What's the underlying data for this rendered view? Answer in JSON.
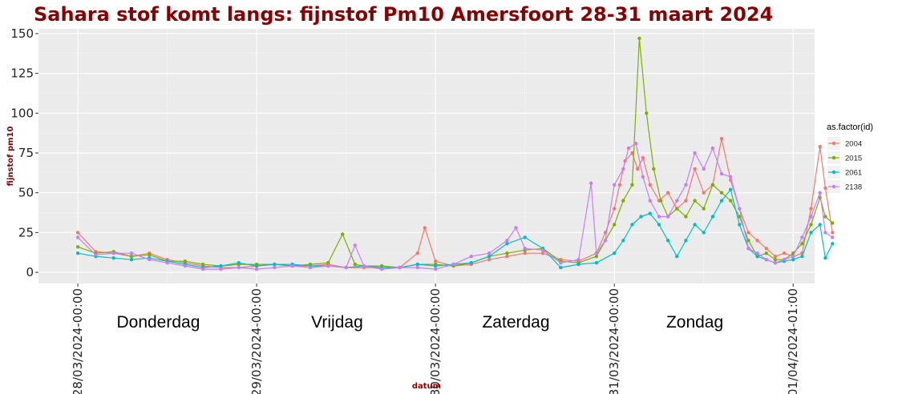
{
  "chart_data": {
    "type": "line",
    "title": "Sahara stof komt langs: fijnstof Pm10 Amersfoort 28-31 maart 2024",
    "xlabel": "datum",
    "ylabel": "fijnstof pm10",
    "ylim": [
      -7,
      153
    ],
    "yticks": [
      0,
      25,
      50,
      75,
      100,
      125,
      150
    ],
    "xlim": [
      -0.22,
      4.12
    ],
    "xticks": [
      {
        "x": 0,
        "label": "28/03/2024-00:00"
      },
      {
        "x": 1,
        "label": "29/03/2024-00:00"
      },
      {
        "x": 2,
        "label": "30/03/2024-00:00"
      },
      {
        "x": 3,
        "label": "31/03/2024-00:00"
      },
      {
        "x": 4,
        "label": "01/04/2024-01:00"
      }
    ],
    "day_annotations": [
      {
        "x": 0.45,
        "text": "Donderdag"
      },
      {
        "x": 1.45,
        "text": "Vrijdag"
      },
      {
        "x": 2.45,
        "text": "Zaterdag"
      },
      {
        "x": 3.45,
        "text": "Zondag"
      }
    ],
    "x_unit": "days since 28/03/2024-00:00",
    "grid": true,
    "legend": {
      "title": "as.factor(id)",
      "placement": "right"
    },
    "series": [
      {
        "name": "2004",
        "color": "#f8766d",
        "points": [
          [
            0.0,
            25
          ],
          [
            0.1,
            13
          ],
          [
            0.2,
            12
          ],
          [
            0.3,
            10
          ],
          [
            0.4,
            12
          ],
          [
            0.5,
            8
          ],
          [
            0.6,
            6
          ],
          [
            0.7,
            4
          ],
          [
            0.8,
            3
          ],
          [
            0.9,
            3
          ],
          [
            1.0,
            4
          ],
          [
            1.1,
            5
          ],
          [
            1.2,
            4
          ],
          [
            1.3,
            4
          ],
          [
            1.4,
            5
          ],
          [
            1.5,
            3
          ],
          [
            1.6,
            3
          ],
          [
            1.7,
            3
          ],
          [
            1.8,
            3
          ],
          [
            1.9,
            12
          ],
          [
            1.94,
            28
          ],
          [
            2.0,
            7
          ],
          [
            2.1,
            4
          ],
          [
            2.2,
            5
          ],
          [
            2.3,
            8
          ],
          [
            2.4,
            10
          ],
          [
            2.5,
            12
          ],
          [
            2.6,
            12
          ],
          [
            2.7,
            8
          ],
          [
            2.8,
            7
          ],
          [
            2.9,
            12
          ],
          [
            2.95,
            25
          ],
          [
            3.0,
            40
          ],
          [
            3.03,
            55
          ],
          [
            3.06,
            70
          ],
          [
            3.1,
            75
          ],
          [
            3.13,
            65
          ],
          [
            3.16,
            72
          ],
          [
            3.2,
            55
          ],
          [
            3.25,
            45
          ],
          [
            3.3,
            50
          ],
          [
            3.35,
            40
          ],
          [
            3.4,
            45
          ],
          [
            3.45,
            65
          ],
          [
            3.5,
            50
          ],
          [
            3.55,
            55
          ],
          [
            3.6,
            84
          ],
          [
            3.65,
            58
          ],
          [
            3.7,
            40
          ],
          [
            3.75,
            25
          ],
          [
            3.8,
            20
          ],
          [
            3.85,
            15
          ],
          [
            3.9,
            10
          ],
          [
            3.95,
            12
          ],
          [
            4.0,
            10
          ],
          [
            4.05,
            12
          ],
          [
            4.1,
            40
          ],
          [
            4.15,
            79
          ],
          [
            4.18,
            53
          ],
          [
            4.22,
            25
          ]
        ]
      },
      {
        "name": "2015",
        "color": "#7cae00",
        "points": [
          [
            0.0,
            16
          ],
          [
            0.1,
            12
          ],
          [
            0.2,
            13
          ],
          [
            0.3,
            10
          ],
          [
            0.4,
            11
          ],
          [
            0.5,
            7
          ],
          [
            0.6,
            7
          ],
          [
            0.7,
            5
          ],
          [
            0.8,
            4
          ],
          [
            0.9,
            5
          ],
          [
            1.0,
            5
          ],
          [
            1.1,
            5
          ],
          [
            1.2,
            4
          ],
          [
            1.3,
            5
          ],
          [
            1.4,
            6
          ],
          [
            1.48,
            24
          ],
          [
            1.55,
            5
          ],
          [
            1.6,
            4
          ],
          [
            1.7,
            4
          ],
          [
            1.8,
            3
          ],
          [
            1.9,
            5
          ],
          [
            2.0,
            5
          ],
          [
            2.1,
            4
          ],
          [
            2.2,
            6
          ],
          [
            2.3,
            10
          ],
          [
            2.4,
            12
          ],
          [
            2.5,
            14
          ],
          [
            2.6,
            15
          ],
          [
            2.7,
            7
          ],
          [
            2.8,
            6
          ],
          [
            2.9,
            10
          ],
          [
            2.95,
            20
          ],
          [
            3.0,
            30
          ],
          [
            3.05,
            45
          ],
          [
            3.1,
            55
          ],
          [
            3.14,
            147
          ],
          [
            3.18,
            100
          ],
          [
            3.22,
            65
          ],
          [
            3.26,
            45
          ],
          [
            3.3,
            35
          ],
          [
            3.35,
            40
          ],
          [
            3.4,
            35
          ],
          [
            3.45,
            45
          ],
          [
            3.5,
            40
          ],
          [
            3.55,
            55
          ],
          [
            3.6,
            50
          ],
          [
            3.65,
            45
          ],
          [
            3.7,
            35
          ],
          [
            3.75,
            20
          ],
          [
            3.8,
            10
          ],
          [
            3.85,
            12
          ],
          [
            3.9,
            8
          ],
          [
            3.95,
            8
          ],
          [
            4.0,
            12
          ],
          [
            4.05,
            18
          ],
          [
            4.1,
            30
          ],
          [
            4.15,
            47
          ],
          [
            4.18,
            35
          ],
          [
            4.22,
            31
          ]
        ]
      },
      {
        "name": "2061",
        "color": "#00bfc4",
        "points": [
          [
            0.0,
            12
          ],
          [
            0.1,
            10
          ],
          [
            0.2,
            9
          ],
          [
            0.3,
            8
          ],
          [
            0.4,
            9
          ],
          [
            0.5,
            7
          ],
          [
            0.6,
            5
          ],
          [
            0.7,
            3
          ],
          [
            0.8,
            4
          ],
          [
            0.9,
            6
          ],
          [
            1.0,
            4
          ],
          [
            1.1,
            5
          ],
          [
            1.2,
            5
          ],
          [
            1.3,
            4
          ],
          [
            1.4,
            4
          ],
          [
            1.5,
            3
          ],
          [
            1.6,
            4
          ],
          [
            1.7,
            3
          ],
          [
            1.8,
            3
          ],
          [
            1.9,
            5
          ],
          [
            2.0,
            4
          ],
          [
            2.1,
            5
          ],
          [
            2.2,
            6
          ],
          [
            2.3,
            10
          ],
          [
            2.4,
            18
          ],
          [
            2.5,
            22
          ],
          [
            2.6,
            15
          ],
          [
            2.7,
            3
          ],
          [
            2.8,
            5
          ],
          [
            2.9,
            6
          ],
          [
            3.0,
            12
          ],
          [
            3.05,
            20
          ],
          [
            3.1,
            30
          ],
          [
            3.15,
            35
          ],
          [
            3.2,
            37
          ],
          [
            3.25,
            30
          ],
          [
            3.3,
            20
          ],
          [
            3.35,
            10
          ],
          [
            3.4,
            20
          ],
          [
            3.45,
            30
          ],
          [
            3.5,
            25
          ],
          [
            3.55,
            35
          ],
          [
            3.6,
            45
          ],
          [
            3.65,
            52
          ],
          [
            3.7,
            30
          ],
          [
            3.75,
            15
          ],
          [
            3.8,
            10
          ],
          [
            3.85,
            8
          ],
          [
            3.9,
            6
          ],
          [
            3.95,
            7
          ],
          [
            4.0,
            8
          ],
          [
            4.05,
            10
          ],
          [
            4.1,
            25
          ],
          [
            4.15,
            30
          ],
          [
            4.18,
            9
          ],
          [
            4.22,
            18
          ]
        ]
      },
      {
        "name": "2138",
        "color": "#c77cff",
        "points": [
          [
            0.0,
            22
          ],
          [
            0.1,
            11
          ],
          [
            0.2,
            12
          ],
          [
            0.3,
            12
          ],
          [
            0.4,
            8
          ],
          [
            0.5,
            6
          ],
          [
            0.6,
            4
          ],
          [
            0.7,
            2
          ],
          [
            0.8,
            2
          ],
          [
            0.9,
            3
          ],
          [
            1.0,
            2
          ],
          [
            1.1,
            3
          ],
          [
            1.2,
            4
          ],
          [
            1.3,
            3
          ],
          [
            1.4,
            4
          ],
          [
            1.5,
            3
          ],
          [
            1.55,
            17
          ],
          [
            1.6,
            4
          ],
          [
            1.7,
            2
          ],
          [
            1.8,
            3
          ],
          [
            1.9,
            3
          ],
          [
            2.0,
            2
          ],
          [
            2.1,
            5
          ],
          [
            2.2,
            10
          ],
          [
            2.3,
            12
          ],
          [
            2.4,
            20
          ],
          [
            2.45,
            28
          ],
          [
            2.5,
            15
          ],
          [
            2.6,
            14
          ],
          [
            2.7,
            6
          ],
          [
            2.8,
            8
          ],
          [
            2.87,
            56
          ],
          [
            2.9,
            12
          ],
          [
            2.95,
            20
          ],
          [
            3.0,
            55
          ],
          [
            3.05,
            65
          ],
          [
            3.08,
            78
          ],
          [
            3.12,
            81
          ],
          [
            3.16,
            60
          ],
          [
            3.2,
            45
          ],
          [
            3.25,
            35
          ],
          [
            3.3,
            35
          ],
          [
            3.35,
            45
          ],
          [
            3.4,
            55
          ],
          [
            3.45,
            75
          ],
          [
            3.5,
            65
          ],
          [
            3.55,
            78
          ],
          [
            3.6,
            62
          ],
          [
            3.65,
            60
          ],
          [
            3.7,
            40
          ],
          [
            3.75,
            15
          ],
          [
            3.8,
            12
          ],
          [
            3.85,
            8
          ],
          [
            3.9,
            6
          ],
          [
            3.95,
            8
          ],
          [
            4.0,
            10
          ],
          [
            4.05,
            22
          ],
          [
            4.1,
            35
          ],
          [
            4.15,
            50
          ],
          [
            4.18,
            25
          ],
          [
            4.22,
            22
          ]
        ]
      }
    ]
  }
}
